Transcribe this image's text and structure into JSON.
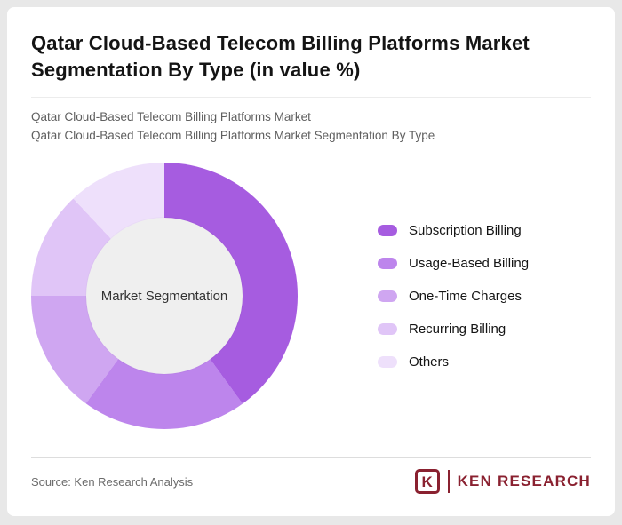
{
  "header": {
    "title": "Qatar Cloud-Based Telecom Billing Platforms Market Segmentation By Type (in value %)",
    "subtitle_line1": "Qatar Cloud-Based Telecom Billing Platforms Market",
    "subtitle_line2": "Qatar Cloud-Based Telecom Billing Platforms Market Segmentation By Type"
  },
  "chart_data": {
    "type": "pie",
    "donut": true,
    "title": "Qatar Cloud-Based Telecom Billing Platforms Market Segmentation By Type (in value %)",
    "center_label": "Market Segmentation",
    "legend_position": "right",
    "categories": [
      "Subscription Billing",
      "Usage-Based Billing",
      "One-Time Charges",
      "Recurring Billing",
      "Others"
    ],
    "values": [
      40,
      20,
      15,
      13,
      12
    ],
    "colors": [
      "#a65ce0",
      "#bd85ec",
      "#cfa6f1",
      "#e0c5f7",
      "#eee0fb"
    ],
    "inner_circle_color": "#efefef",
    "start_angle_deg": 0
  },
  "footer": {
    "source": "Source: Ken Research Analysis",
    "logo": {
      "letter": "K",
      "text": "KEN RESEARCH",
      "color": "#8a2130"
    }
  }
}
